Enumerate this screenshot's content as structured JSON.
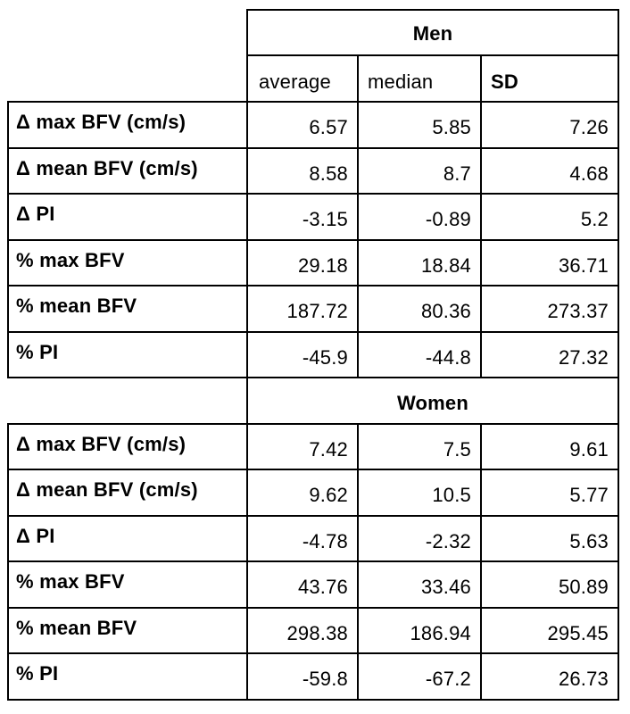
{
  "column_headers": [
    "average",
    "median",
    "SD"
  ],
  "groups": [
    {
      "name": "Men",
      "rows": [
        {
          "label": "Δ max BFV (cm/s)",
          "values": [
            "6.57",
            "5.85",
            "7.26"
          ]
        },
        {
          "label": "Δ mean BFV (cm/s)",
          "values": [
            "8.58",
            "8.7",
            "4.68"
          ]
        },
        {
          "label": "Δ PI",
          "values": [
            "-3.15",
            "-0.89",
            "5.2"
          ]
        },
        {
          "label": "% max BFV",
          "values": [
            "29.18",
            "18.84",
            "36.71"
          ]
        },
        {
          "label": "% mean BFV",
          "values": [
            "187.72",
            "80.36",
            "273.37"
          ]
        },
        {
          "label": "% PI",
          "values": [
            "-45.9",
            "-44.8",
            "27.32"
          ]
        }
      ]
    },
    {
      "name": "Women",
      "rows": [
        {
          "label": "Δ max BFV (cm/s)",
          "values": [
            "7.42",
            "7.5",
            "9.61"
          ]
        },
        {
          "label": "Δ mean BFV (cm/s)",
          "values": [
            "9.62",
            "10.5",
            "5.77"
          ]
        },
        {
          "label": "Δ PI",
          "values": [
            "-4.78",
            "-2.32",
            "5.63"
          ]
        },
        {
          "label": "% max BFV",
          "values": [
            "43.76",
            "33.46",
            "50.89"
          ]
        },
        {
          "label": "% mean BFV",
          "values": [
            "298.38",
            "186.94",
            "295.45"
          ]
        },
        {
          "label": "% PI",
          "values": [
            "-59.8",
            "-67.2",
            "26.73"
          ]
        }
      ]
    }
  ]
}
